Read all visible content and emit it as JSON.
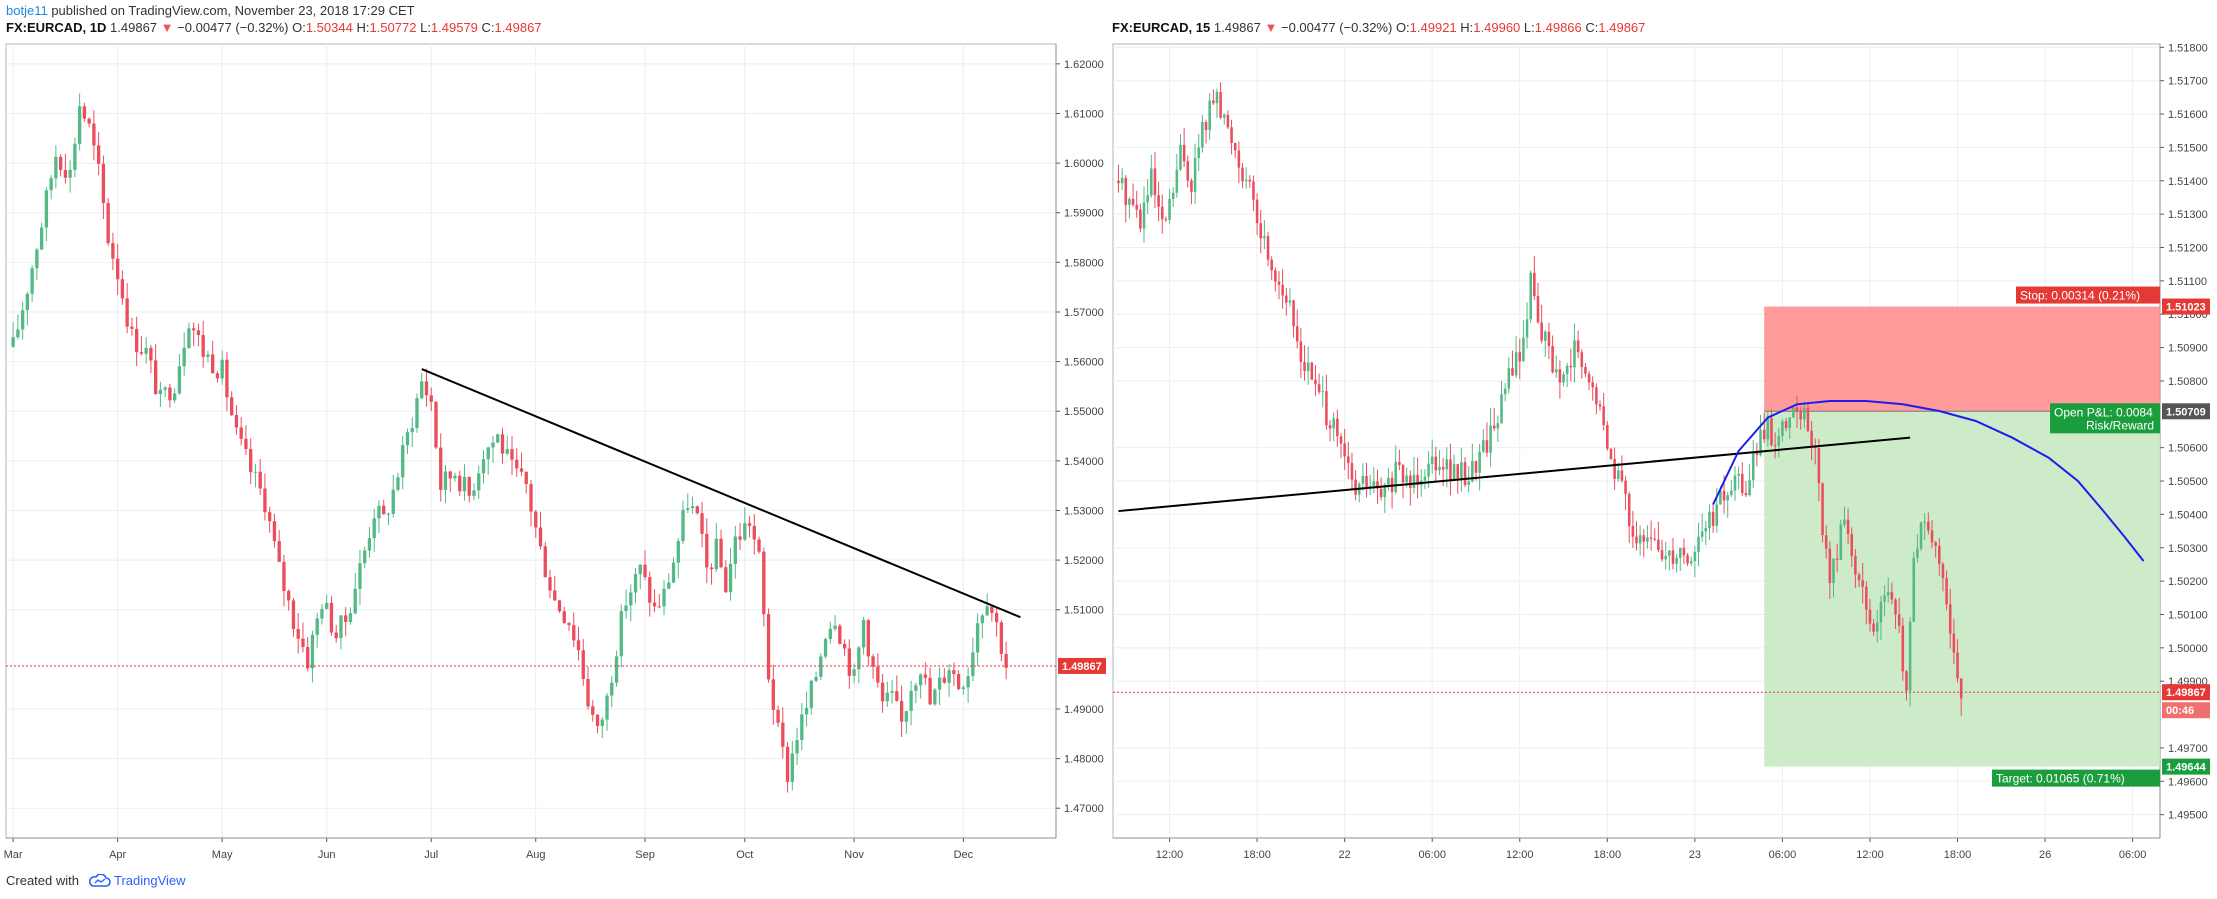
{
  "header": {
    "author": "botje11",
    "rest": "published on TradingView.com, November 23, 2018 17:29 CET"
  },
  "footer": {
    "created_with": "Created with",
    "brand": "TradingView",
    "logo_icon": "tradingview-cloud-icon"
  },
  "colors": {
    "up": "#53b987",
    "down": "#eb4d5c",
    "grid": "#e9eff3",
    "trendline": "#000000",
    "ma": "#1e1eec",
    "stop_zone": "#ff8a8a",
    "target_zone": "#c8e8c3",
    "price_line": "#e53935"
  },
  "chart_data": [
    {
      "type": "candlestick",
      "symbol": "FX:EURCAD, 1D",
      "legend": {
        "symbol": "FX:EURCAD, 1D",
        "last": "1.49867",
        "change": "−0.00477 (−0.32%)",
        "open_label": "O:",
        "open": "1.50344",
        "high_label": "H:",
        "high": "1.50772",
        "low_label": "L:",
        "low": "1.49579",
        "close_label": "C:",
        "close": "1.49867"
      },
      "ylim": [
        1.464,
        1.624
      ],
      "y_ticks": [
        1.62,
        1.61,
        1.6,
        1.59,
        1.58,
        1.57,
        1.56,
        1.55,
        1.54,
        1.53,
        1.52,
        1.51,
        1.49,
        1.48,
        1.47
      ],
      "y_tick_labels": [
        "1.62000",
        "1.61000",
        "1.60000",
        "1.59000",
        "1.58000",
        "1.57000",
        "1.56000",
        "1.55000",
        "1.54000",
        "1.53000",
        "1.52000",
        "1.51000",
        "1.49000",
        "1.48000",
        "1.47000"
      ],
      "x_tick_labels": [
        "Mar",
        "Apr",
        "May",
        "Jun",
        "Jul",
        "Aug",
        "Sep",
        "Oct",
        "Nov",
        "Dec"
      ],
      "x_tick_index": [
        0,
        22,
        44,
        66,
        88,
        110,
        133,
        154,
        177,
        200
      ],
      "x_count": 215,
      "last_price": 1.49867,
      "last_price_label": "1.49867",
      "trendline": [
        [
          86,
          1.5585
        ],
        [
          212,
          1.5085
        ]
      ],
      "path_anchors": [
        [
          0,
          1.563
        ],
        [
          3,
          1.575
        ],
        [
          6,
          1.588
        ],
        [
          9,
          1.602
        ],
        [
          12,
          1.598
        ],
        [
          14,
          1.612
        ],
        [
          16,
          1.607
        ],
        [
          18,
          1.598
        ],
        [
          20,
          1.585
        ],
        [
          22,
          1.578
        ],
        [
          25,
          1.565
        ],
        [
          28,
          1.562
        ],
        [
          31,
          1.552
        ],
        [
          34,
          1.556
        ],
        [
          37,
          1.569
        ],
        [
          40,
          1.562
        ],
        [
          44,
          1.558
        ],
        [
          47,
          1.545
        ],
        [
          50,
          1.538
        ],
        [
          53,
          1.532
        ],
        [
          56,
          1.518
        ],
        [
          59,
          1.508
        ],
        [
          62,
          1.5
        ],
        [
          65,
          1.512
        ],
        [
          68,
          1.505
        ],
        [
          70,
          1.508
        ],
        [
          72,
          1.515
        ],
        [
          74,
          1.522
        ],
        [
          76,
          1.53
        ],
        [
          78,
          1.528
        ],
        [
          80,
          1.534
        ],
        [
          83,
          1.545
        ],
        [
          86,
          1.556
        ],
        [
          88,
          1.552
        ],
        [
          90,
          1.535
        ],
        [
          93,
          1.538
        ],
        [
          96,
          1.533
        ],
        [
          99,
          1.542
        ],
        [
          102,
          1.545
        ],
        [
          105,
          1.538
        ],
        [
          108,
          1.535
        ],
        [
          111,
          1.522
        ],
        [
          114,
          1.512
        ],
        [
          117,
          1.508
        ],
        [
          119,
          1.502
        ],
        [
          121,
          1.492
        ],
        [
          123,
          1.485
        ],
        [
          125,
          1.492
        ],
        [
          127,
          1.503
        ],
        [
          129,
          1.512
        ],
        [
          132,
          1.518
        ],
        [
          135,
          1.51
        ],
        [
          137,
          1.513
        ],
        [
          139,
          1.52
        ],
        [
          142,
          1.532
        ],
        [
          144,
          1.528
        ],
        [
          146,
          1.518
        ],
        [
          148,
          1.522
        ],
        [
          150,
          1.515
        ],
        [
          152,
          1.524
        ],
        [
          155,
          1.528
        ],
        [
          157,
          1.52
        ],
        [
          159,
          1.497
        ],
        [
          161,
          1.485
        ],
        [
          163,
          1.477
        ],
        [
          165,
          1.485
        ],
        [
          167,
          1.49
        ],
        [
          169,
          1.497
        ],
        [
          171,
          1.506
        ],
        [
          173,
          1.509
        ],
        [
          175,
          1.502
        ],
        [
          177,
          1.496
        ],
        [
          179,
          1.508
        ],
        [
          181,
          1.498
        ],
        [
          183,
          1.491
        ],
        [
          185,
          1.492
        ],
        [
          187,
          1.487
        ],
        [
          189,
          1.495
        ],
        [
          191,
          1.499
        ],
        [
          193,
          1.491
        ],
        [
          195,
          1.495
        ],
        [
          197,
          1.499
        ],
        [
          199,
          1.495
        ],
        [
          201,
          1.498
        ],
        [
          203,
          1.508
        ],
        [
          205,
          1.513
        ],
        [
          207,
          1.507
        ],
        [
          209,
          1.499
        ]
      ]
    },
    {
      "type": "candlestick",
      "symbol": "FX:EURCAD, 15",
      "legend": {
        "symbol": "FX:EURCAD, 15",
        "last": "1.49867",
        "change": "−0.00477 (−0.32%)",
        "open_label": "O:",
        "open": "1.49921",
        "high_label": "H:",
        "high": "1.49960",
        "low_label": "L:",
        "low": "1.49866",
        "close_label": "C:",
        "close": "1.49867"
      },
      "ylim": [
        1.4943,
        1.5181
      ],
      "y_ticks": [
        1.518,
        1.517,
        1.516,
        1.515,
        1.514,
        1.513,
        1.512,
        1.511,
        1.51,
        1.509,
        1.508,
        1.506,
        1.505,
        1.504,
        1.503,
        1.502,
        1.501,
        1.5,
        1.499,
        1.497,
        1.496,
        1.495
      ],
      "y_tick_labels": [
        "1.51800",
        "1.51700",
        "1.51600",
        "1.51500",
        "1.51400",
        "1.51300",
        "1.51200",
        "1.51100",
        "1.51000",
        "1.50900",
        "1.50800",
        "1.50600",
        "1.50500",
        "1.50400",
        "1.50300",
        "1.50200",
        "1.50100",
        "1.50000",
        "1.49900",
        "1.49700",
        "1.49600",
        "1.49500"
      ],
      "x_tick_labels": [
        "12:00",
        "18:00",
        "22",
        "06:00",
        "12:00",
        "18:00",
        "23",
        "06:00",
        "12:00",
        "18:00",
        "26",
        "06:00"
      ],
      "x_tick_index": [
        14,
        38,
        62,
        86,
        110,
        134,
        158,
        182,
        206,
        230,
        254,
        278
      ],
      "x_count": 281,
      "last_price": 1.49867,
      "last_price_label": "1.49867",
      "countdown_label": "00:46",
      "trendline": [
        [
          0,
          1.5041
        ],
        [
          217,
          1.5063
        ]
      ],
      "ma_curve": [
        [
          163,
          1.5043
        ],
        [
          170,
          1.5059
        ],
        [
          178,
          1.5069
        ],
        [
          186,
          1.5073
        ],
        [
          195,
          1.5074
        ],
        [
          205,
          1.5074
        ],
        [
          215,
          1.5073
        ],
        [
          225,
          1.5071
        ],
        [
          235,
          1.5068
        ],
        [
          245,
          1.5063
        ],
        [
          255,
          1.5057
        ],
        [
          263,
          1.505
        ],
        [
          270,
          1.5041
        ],
        [
          276,
          1.5033
        ],
        [
          281,
          1.5026
        ]
      ],
      "position": {
        "start_index": 177,
        "entry": 1.50709,
        "entry_label": "1.50709",
        "stop": 1.51023,
        "stop_label": "1.51023",
        "target": 1.49644,
        "target_label": "1.49644",
        "stop_text": "Stop: 0.00314 (0.21%)",
        "target_text": "Target: 0.01065 (0.71%)",
        "pnl_text": "Open P&L: 0.0084",
        "rr_text": "Risk/Reward"
      },
      "path_anchors": [
        [
          0,
          1.514
        ],
        [
          3,
          1.5135
        ],
        [
          6,
          1.5128
        ],
        [
          9,
          1.514
        ],
        [
          12,
          1.5125
        ],
        [
          14,
          1.5132
        ],
        [
          17,
          1.5148
        ],
        [
          20,
          1.514
        ],
        [
          23,
          1.5155
        ],
        [
          26,
          1.5165
        ],
        [
          29,
          1.5158
        ],
        [
          32,
          1.515
        ],
        [
          35,
          1.514
        ],
        [
          38,
          1.5128
        ],
        [
          42,
          1.5115
        ],
        [
          46,
          1.5105
        ],
        [
          50,
          1.5088
        ],
        [
          54,
          1.5078
        ],
        [
          58,
          1.5068
        ],
        [
          62,
          1.5056
        ],
        [
          65,
          1.5047
        ],
        [
          68,
          1.505
        ],
        [
          72,
          1.5045
        ],
        [
          76,
          1.5052
        ],
        [
          80,
          1.505
        ],
        [
          84,
          1.5055
        ],
        [
          88,
          1.5058
        ],
        [
          92,
          1.5052
        ],
        [
          96,
          1.5052
        ],
        [
          100,
          1.506
        ],
        [
          104,
          1.507
        ],
        [
          108,
          1.5085
        ],
        [
          111,
          1.509
        ],
        [
          113,
          1.5112
        ],
        [
          116,
          1.5095
        ],
        [
          119,
          1.5085
        ],
        [
          122,
          1.5078
        ],
        [
          125,
          1.509
        ],
        [
          128,
          1.508
        ],
        [
          131,
          1.5075
        ],
        [
          134,
          1.506
        ],
        [
          137,
          1.5052
        ],
        [
          140,
          1.504
        ],
        [
          143,
          1.503
        ],
        [
          146,
          1.5032
        ],
        [
          150,
          1.5028
        ],
        [
          154,
          1.503
        ],
        [
          157,
          1.5027
        ],
        [
          160,
          1.5035
        ],
        [
          163,
          1.504
        ],
        [
          166,
          1.5045
        ],
        [
          169,
          1.505
        ],
        [
          172,
          1.5048
        ],
        [
          175,
          1.506
        ],
        [
          178,
          1.5065
        ],
        [
          181,
          1.5062
        ],
        [
          184,
          1.5068
        ],
        [
          187,
          1.5072
        ],
        [
          189,
          1.5065
        ],
        [
          191,
          1.506
        ],
        [
          193,
          1.5035
        ],
        [
          195,
          1.502
        ],
        [
          197,
          1.503
        ],
        [
          199,
          1.5038
        ],
        [
          202,
          1.5025
        ],
        [
          205,
          1.501
        ],
        [
          208,
          1.5008
        ],
        [
          211,
          1.5015
        ],
        [
          214,
          1.5005
        ],
        [
          216,
          1.4985
        ],
        [
          218,
          1.5028
        ],
        [
          221,
          1.5038
        ],
        [
          224,
          1.5028
        ],
        [
          227,
          1.5012
        ],
        [
          229,
          1.5
        ],
        [
          231,
          1.4987
        ]
      ]
    }
  ]
}
